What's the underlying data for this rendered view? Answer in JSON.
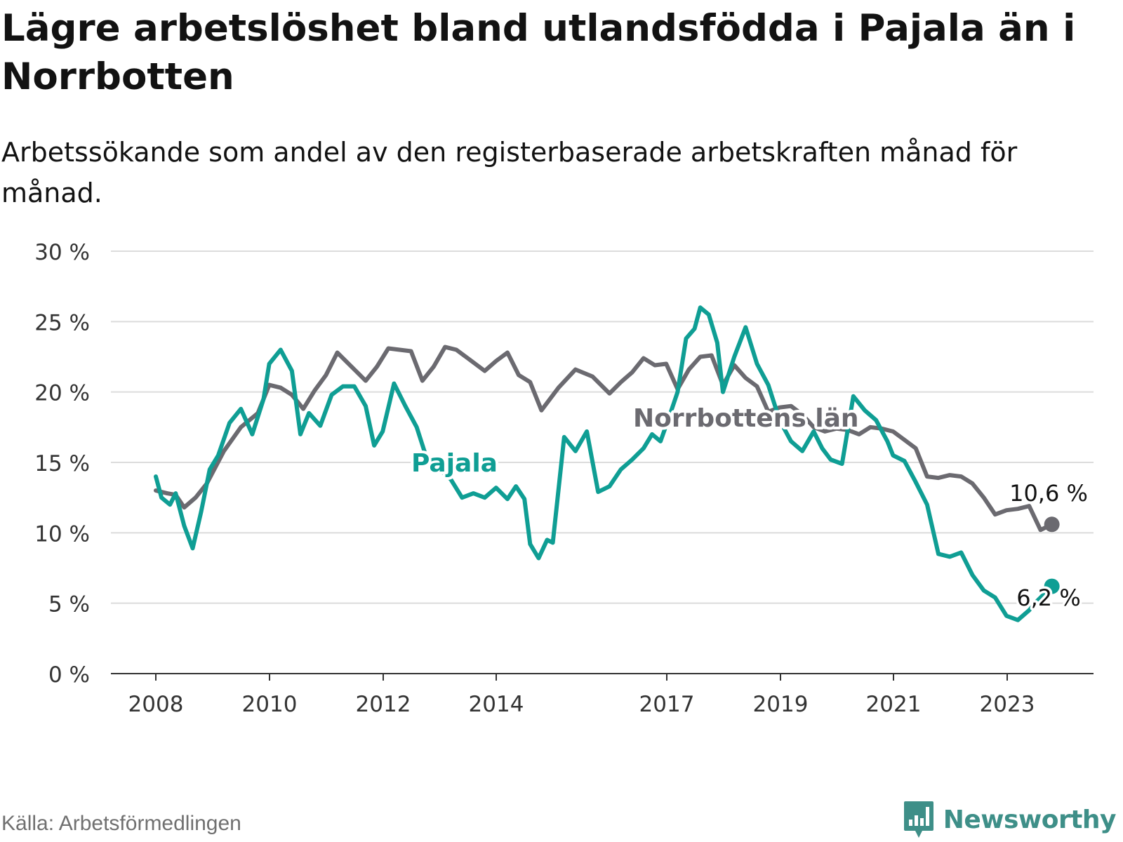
{
  "title": "Lägre arbetslöshet bland utlandsfödda i Pajala än i Norrbotten",
  "subtitle": "Arbetssökande som andel av den registerbaserade arbetskraften månad för månad.",
  "source": "Källa: Arbetsförmedlingen",
  "brand": {
    "name": "Newsworthy",
    "logo_icon": "bar-chart-speech-bubble-icon",
    "color": "#3e8f88"
  },
  "chart_data": {
    "type": "line",
    "title": "Lägre arbetslöshet bland utlandsfödda i Pajala än i Norrbotten",
    "xlabel": "",
    "ylabel": "",
    "ylim": [
      0,
      30
    ],
    "yticks": [
      0,
      5,
      10,
      15,
      20,
      25,
      30
    ],
    "ytick_labels": [
      "0 %",
      "5 %",
      "10 %",
      "15 %",
      "20 %",
      "25 %",
      "30 %"
    ],
    "xlim": [
      2007.6,
      2024.4
    ],
    "xticks": [
      2008,
      2010,
      2012,
      2014,
      2017,
      2019,
      2021,
      2023
    ],
    "xtick_labels": [
      "2008",
      "2010",
      "2012",
      "2014",
      "2017",
      "2019",
      "2021",
      "2023"
    ],
    "grid": true,
    "series": [
      {
        "name": "Norrbottens län",
        "label": "Norrbottens län",
        "color": "#6b6a70",
        "end_label": "10,6 %",
        "x": [
          2008.0,
          2008.2,
          2008.35,
          2008.5,
          2008.7,
          2008.9,
          2009.2,
          2009.5,
          2009.8,
          2010.0,
          2010.2,
          2010.4,
          2010.6,
          2010.8,
          2011.0,
          2011.2,
          2011.4,
          2011.7,
          2011.9,
          2012.1,
          2012.3,
          2012.5,
          2012.7,
          2012.9,
          2013.1,
          2013.3,
          2013.5,
          2013.8,
          2014.0,
          2014.2,
          2014.4,
          2014.6,
          2014.8,
          2015.1,
          2015.4,
          2015.7,
          2016.0,
          2016.2,
          2016.4,
          2016.6,
          2016.8,
          2017.0,
          2017.2,
          2017.4,
          2017.6,
          2017.8,
          2018.0,
          2018.2,
          2018.4,
          2018.6,
          2018.8,
          2019.0,
          2019.2,
          2019.4,
          2019.6,
          2019.8,
          2020.0,
          2020.2,
          2020.4,
          2020.6,
          2020.8,
          2021.0,
          2021.2,
          2021.4,
          2021.6,
          2021.8,
          2022.0,
          2022.2,
          2022.4,
          2022.6,
          2022.8,
          2023.0,
          2023.2,
          2023.4,
          2023.6,
          2023.8
        ],
        "values": [
          13.0,
          12.8,
          12.7,
          11.8,
          12.5,
          13.5,
          15.8,
          17.5,
          18.5,
          20.5,
          20.3,
          19.8,
          18.8,
          20.1,
          21.2,
          22.8,
          22.0,
          20.8,
          21.8,
          23.1,
          23.0,
          22.9,
          20.8,
          21.8,
          23.2,
          23.0,
          22.4,
          21.5,
          22.2,
          22.8,
          21.2,
          20.7,
          18.7,
          20.3,
          21.6,
          21.1,
          19.9,
          20.7,
          21.4,
          22.4,
          21.9,
          22.0,
          20.2,
          21.6,
          22.5,
          22.6,
          20.5,
          21.9,
          21.0,
          20.4,
          18.6,
          18.9,
          19.0,
          18.4,
          17.5,
          17.2,
          17.4,
          17.3,
          17.0,
          17.5,
          17.4,
          17.2,
          16.6,
          16.0,
          14.0,
          13.9,
          14.1,
          14.0,
          13.5,
          12.5,
          11.3,
          11.6,
          11.7,
          11.9,
          10.2,
          10.6
        ]
      },
      {
        "name": "Pajala",
        "label": "Pajala",
        "color": "#0f9e94",
        "end_label": "6,2 %",
        "x": [
          2008.0,
          2008.1,
          2008.25,
          2008.35,
          2008.5,
          2008.65,
          2008.8,
          2008.95,
          2009.1,
          2009.3,
          2009.5,
          2009.7,
          2009.9,
          2010.0,
          2010.2,
          2010.4,
          2010.55,
          2010.7,
          2010.9,
          2011.1,
          2011.3,
          2011.5,
          2011.7,
          2011.85,
          2012.0,
          2012.2,
          2012.4,
          2012.6,
          2012.8,
          2013.0,
          2013.2,
          2013.4,
          2013.6,
          2013.8,
          2014.0,
          2014.2,
          2014.35,
          2014.5,
          2014.6,
          2014.75,
          2014.9,
          2015.0,
          2015.2,
          2015.4,
          2015.6,
          2015.8,
          2016.0,
          2016.2,
          2016.4,
          2016.6,
          2016.75,
          2016.9,
          2017.05,
          2017.2,
          2017.35,
          2017.5,
          2017.6,
          2017.75,
          2017.9,
          2018.0,
          2018.2,
          2018.4,
          2018.6,
          2018.8,
          2019.0,
          2019.2,
          2019.4,
          2019.6,
          2019.75,
          2019.9,
          2020.1,
          2020.3,
          2020.5,
          2020.7,
          2020.9,
          2021.0,
          2021.2,
          2021.4,
          2021.6,
          2021.8,
          2022.0,
          2022.2,
          2022.4,
          2022.6,
          2022.8,
          2023.0,
          2023.2,
          2023.4,
          2023.55,
          2023.7,
          2023.8
        ],
        "values": [
          14.0,
          12.5,
          12.0,
          12.8,
          10.5,
          8.9,
          11.5,
          14.5,
          15.5,
          17.8,
          18.8,
          17.0,
          19.5,
          22.0,
          23.0,
          21.5,
          17.0,
          18.5,
          17.6,
          19.8,
          20.4,
          20.4,
          19.0,
          16.2,
          17.2,
          20.6,
          19.0,
          17.5,
          15.0,
          14.5,
          13.8,
          12.5,
          12.8,
          12.5,
          13.2,
          12.4,
          13.3,
          12.4,
          9.2,
          8.2,
          9.5,
          9.3,
          16.8,
          15.8,
          17.2,
          12.9,
          13.3,
          14.5,
          15.2,
          16.0,
          17.0,
          16.5,
          18.2,
          20.0,
          23.8,
          24.5,
          26.0,
          25.5,
          23.5,
          20.0,
          22.5,
          24.6,
          22.0,
          20.5,
          18.0,
          16.5,
          15.8,
          17.2,
          16.0,
          15.2,
          14.9,
          19.7,
          18.7,
          18.0,
          16.5,
          15.5,
          15.1,
          13.6,
          12.0,
          8.5,
          8.3,
          8.6,
          7.0,
          5.9,
          5.4,
          4.1,
          3.8,
          4.5,
          5.2,
          5.8,
          6.2
        ]
      }
    ]
  }
}
